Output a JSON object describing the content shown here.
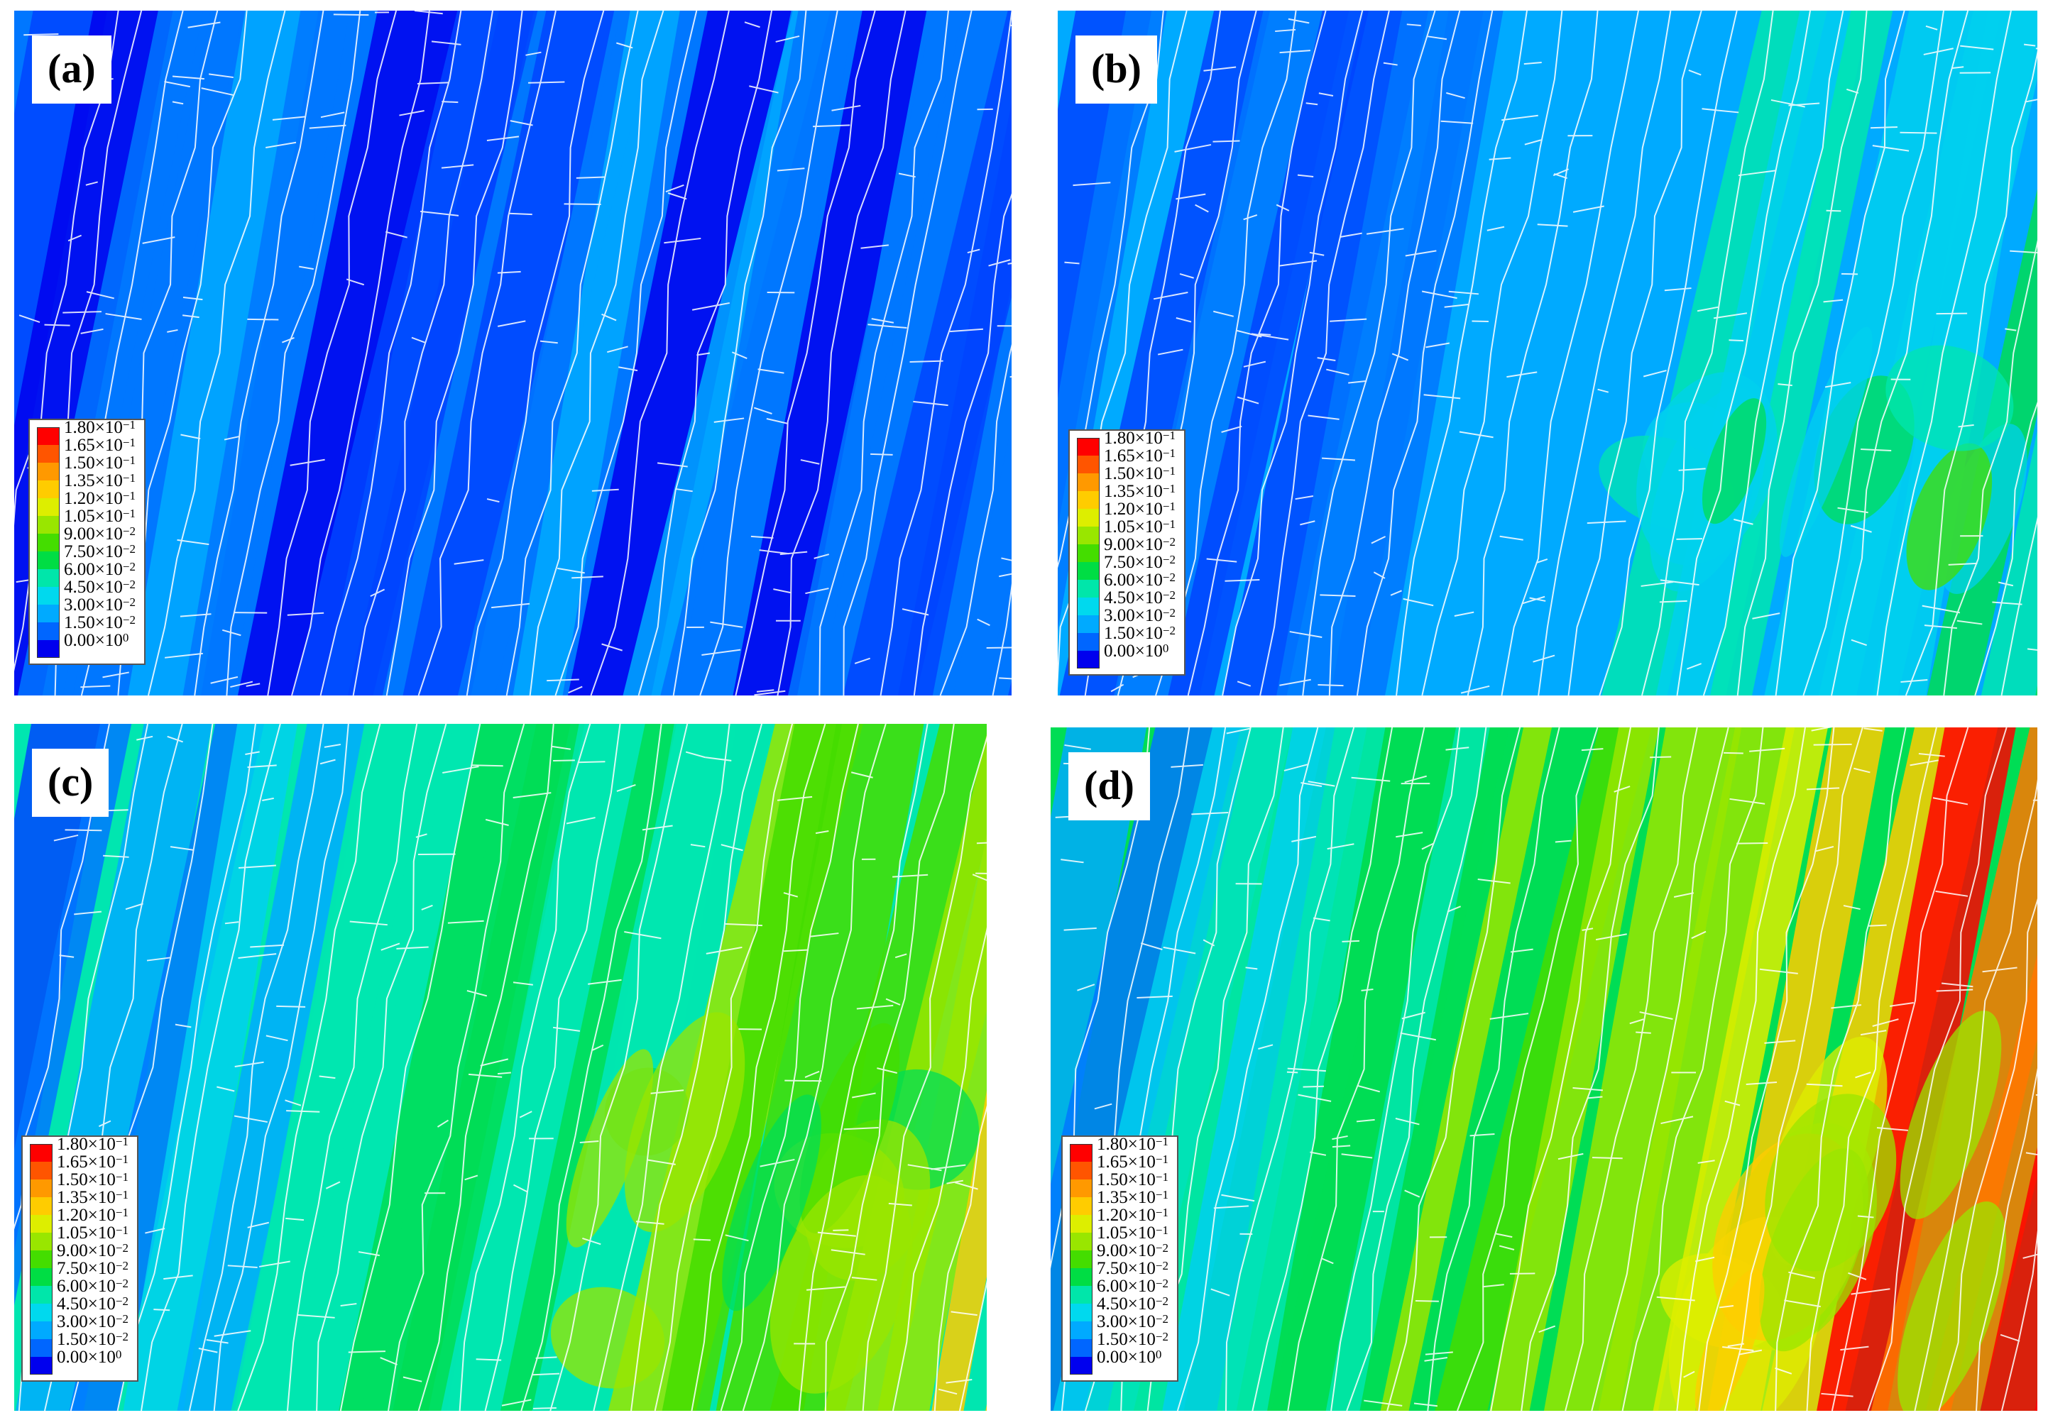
{
  "figure": {
    "panels": [
      {
        "label": "(a)",
        "level": 0.18
      },
      {
        "label": "(b)",
        "level": 0.4
      },
      {
        "label": "(c)",
        "level": 0.62
      },
      {
        "label": "(d)",
        "level": 0.82
      }
    ],
    "legend": {
      "entries": [
        {
          "mantissa": "1.80",
          "exp": "−1",
          "color": "#ff0000"
        },
        {
          "mantissa": "1.65",
          "exp": "−1",
          "color": "#ff5500"
        },
        {
          "mantissa": "1.50",
          "exp": "−1",
          "color": "#ff9900"
        },
        {
          "mantissa": "1.35",
          "exp": "−1",
          "color": "#ffcc00"
        },
        {
          "mantissa": "1.20",
          "exp": "−1",
          "color": "#ddee00"
        },
        {
          "mantissa": "1.05",
          "exp": "−1",
          "color": "#99e600"
        },
        {
          "mantissa": "9.00",
          "exp": "−2",
          "color": "#44dd00"
        },
        {
          "mantissa": "7.50",
          "exp": "−2",
          "color": "#00dd44"
        },
        {
          "mantissa": "6.00",
          "exp": "−2",
          "color": "#00e6aa"
        },
        {
          "mantissa": "4.50",
          "exp": "−2",
          "color": "#00d9ee"
        },
        {
          "mantissa": "3.00",
          "exp": "−2",
          "color": "#00aaff"
        },
        {
          "mantissa": "1.50",
          "exp": "−2",
          "color": "#0066ff"
        },
        {
          "mantissa": "0.00",
          "exp": "0",
          "color": "#0000ee"
        }
      ]
    },
    "colors": {
      "grain_boundary": "#ffffff",
      "low": "#0022ee",
      "mid": "#00ccdd",
      "high": "#ff0000"
    }
  }
}
